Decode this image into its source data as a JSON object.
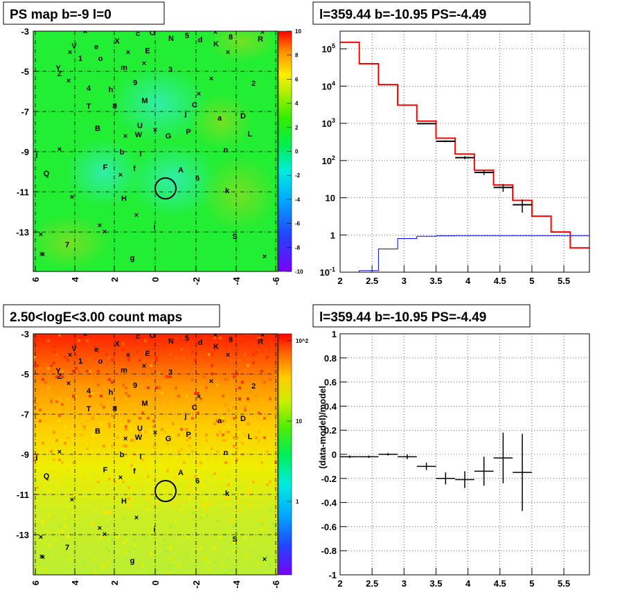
{
  "chart_data": [
    {
      "panel": "top-left",
      "type": "heatmap",
      "title": "PS map b=-9 l=0",
      "x_ticks": [
        "6",
        "4",
        "2",
        "0",
        "-2",
        "-4",
        "-6"
      ],
      "y_ticks": [
        "-3",
        "-5",
        "-7",
        "-9",
        "-11",
        "-13"
      ],
      "colorbar_ticks": [
        "10",
        "8",
        "6",
        "4",
        "2",
        "0",
        "-2",
        "-4",
        "-6",
        "-8",
        "-10"
      ],
      "colorbar_range": [
        -10,
        10
      ],
      "colors": {
        "background": "#22ee33",
        "cool_blob": "#33eebb",
        "hot_blob": "#88dd22"
      },
      "grid": true
    },
    {
      "panel": "top-right",
      "type": "line",
      "title": "l=359.44 b=-10.95 PS=-4.49",
      "y_scale": "log",
      "x_ticks": [
        "2",
        "2.5",
        "3",
        "3.5",
        "4",
        "4.5",
        "5",
        "5.5"
      ],
      "y_ticks": [
        "10^-1",
        "1",
        "10",
        "10^2",
        "10^3",
        "10^4",
        "10^5"
      ],
      "xlim": [
        2,
        5.9
      ],
      "ylim": [
        0.1,
        300000
      ],
      "series": [
        {
          "color": "#ff0000",
          "edges": [
            2.0,
            2.3,
            2.6,
            2.9,
            3.2,
            3.5,
            3.8,
            4.1,
            4.4,
            4.7,
            5.0,
            5.3,
            5.6,
            5.9
          ],
          "values": [
            150000,
            40000,
            11000,
            3100,
            1150,
            400,
            150,
            55,
            22,
            8.5,
            3.2,
            1.2,
            0.45
          ]
        },
        {
          "color": "#0000ff",
          "edges": [
            2.0,
            2.3,
            2.6,
            2.9,
            3.2,
            3.5,
            3.8,
            4.1,
            4.4,
            4.7,
            5.0,
            5.3,
            5.6,
            5.9
          ],
          "values": [
            0.1,
            0.11,
            0.42,
            0.8,
            0.92,
            0.95,
            0.96,
            0.96,
            0.96,
            0.96,
            0.96,
            0.96,
            0.96
          ]
        },
        {
          "color": "#000000",
          "x": [
            3.35,
            3.65,
            3.95,
            4.25,
            4.55,
            4.85
          ],
          "y": [
            980,
            330,
            120,
            48,
            19,
            6.5
          ],
          "err": [
            30,
            18,
            11,
            7,
            4.5,
            2.5
          ]
        }
      ],
      "grid": true
    },
    {
      "panel": "bottom-left",
      "type": "heatmap",
      "title": "2.50<logE<3.00 count maps",
      "x_ticks": [
        "6",
        "4",
        "2",
        "0",
        "-2",
        "-4",
        "-6"
      ],
      "y_ticks": [
        "-3",
        "-5",
        "-7",
        "-9",
        "-11",
        "-13"
      ],
      "colorbar_ticks": [
        "10^2",
        "10",
        "1"
      ],
      "colorbar_scale": "log",
      "colors": {
        "top": "#ff2200",
        "mid": "#ffcc00",
        "bottom": "#ccee33"
      },
      "grid": true
    },
    {
      "panel": "bottom-right",
      "type": "scatter",
      "title": "l=359.44 b=-10.95 PS=-4.49",
      "ylabel": "(data-model)/model",
      "x_ticks": [
        "2",
        "2.5",
        "3",
        "3.5",
        "4",
        "4.5",
        "5",
        "5.5"
      ],
      "y_ticks": [
        "1",
        "0.8",
        "0.6",
        "0.4",
        "0.2",
        "0",
        "-0.2",
        "-0.4",
        "-0.6",
        "-0.8",
        "-1"
      ],
      "xlim": [
        2,
        5.9
      ],
      "ylim": [
        -1,
        1
      ],
      "points": [
        {
          "x": 2.15,
          "y": -0.02,
          "xerr": 0.15,
          "yerr": 0.01
        },
        {
          "x": 2.45,
          "y": -0.02,
          "xerr": 0.15,
          "yerr": 0.01
        },
        {
          "x": 2.75,
          "y": 0.0,
          "xerr": 0.15,
          "yerr": 0.01
        },
        {
          "x": 3.05,
          "y": -0.02,
          "xerr": 0.15,
          "yerr": 0.02
        },
        {
          "x": 3.35,
          "y": -0.1,
          "xerr": 0.15,
          "yerr": 0.03
        },
        {
          "x": 3.65,
          "y": -0.2,
          "xerr": 0.15,
          "yerr": 0.05
        },
        {
          "x": 3.95,
          "y": -0.21,
          "xerr": 0.15,
          "yerr": 0.07
        },
        {
          "x": 4.25,
          "y": -0.14,
          "xerr": 0.15,
          "yerr": 0.12
        },
        {
          "x": 4.55,
          "y": -0.03,
          "xerr": 0.15,
          "yerr": 0.21
        },
        {
          "x": 4.85,
          "y": -0.15,
          "xerr": 0.15,
          "yerr": 0.32
        }
      ],
      "grid": true
    }
  ],
  "sources": {
    "labels": [
      "c",
      "O",
      "N",
      "5",
      "d",
      "K",
      "8",
      "R",
      "V",
      "e",
      "X",
      "1",
      "o",
      "E",
      "Y",
      "Z",
      "m",
      "3",
      "9",
      "2",
      "4",
      "h",
      "M",
      "T",
      "J",
      "C",
      "j",
      "a",
      "D",
      "B",
      "U",
      "W",
      "G",
      "P",
      "L",
      "I",
      "b",
      "l",
      "n",
      "F",
      "f",
      "A",
      "Q",
      "6",
      "k",
      "H",
      "i",
      "S",
      "7",
      "g"
    ],
    "cross_marker": "×"
  },
  "marker_circle": {
    "l": -0.56,
    "b": -10.95
  }
}
